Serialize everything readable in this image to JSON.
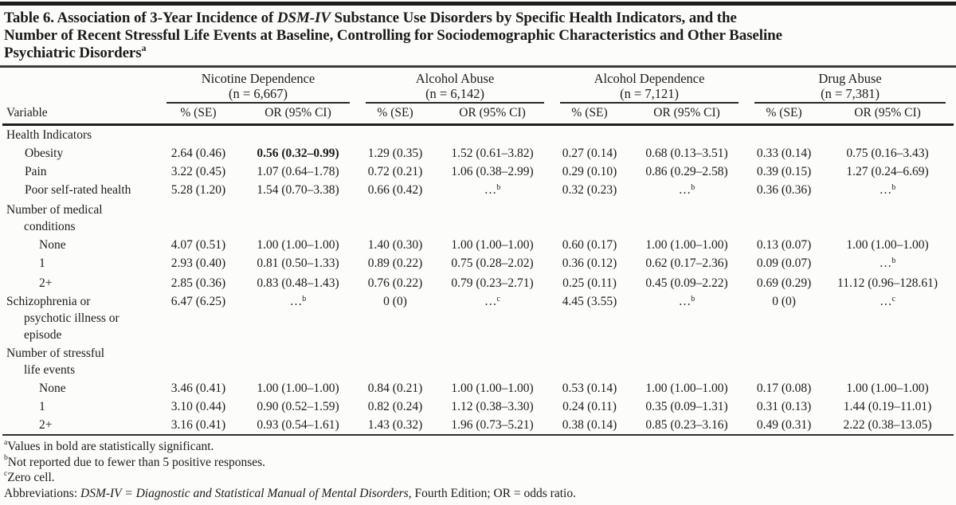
{
  "title": {
    "lines": [
      [
        {
          "t": "Table 6. Association of 3-Year Incidence of "
        },
        {
          "t": "DSM-IV",
          "i": true
        },
        {
          "t": " Substance Use Disorders by Specific Health Indicators, and the"
        }
      ],
      [
        {
          "t": "Number of Recent Stressful Life Events at Baseline, Controlling for Sociodemographic Characteristics and Other Baseline"
        }
      ],
      [
        {
          "t": "Psychiatric Disorders"
        },
        {
          "t": "a",
          "sup": true
        }
      ]
    ]
  },
  "table": {
    "corner_header": "Variable",
    "groups": [
      {
        "name": "Nicotine Dependence",
        "n": "(n = 6,667)"
      },
      {
        "name": "Alcohol Abuse",
        "n": "(n = 6,142)"
      },
      {
        "name": "Alcohol Dependence",
        "n": "(n = 7,121)"
      },
      {
        "name": "Drug Abuse",
        "n": "(n = 7,381)"
      }
    ],
    "subheaders": [
      "% (SE)",
      "OR (95% CI)"
    ],
    "rows": [
      {
        "label": {
          "lines": [
            "Health Indicators"
          ],
          "level": 1
        },
        "cells": null
      },
      {
        "label": {
          "lines": [
            "Obesity"
          ],
          "level": 2
        },
        "cells": [
          {
            "t": "2.64 (0.46)"
          },
          {
            "t": "0.56 (0.32–0.99)",
            "b": true
          },
          {
            "t": "1.29 (0.35)"
          },
          {
            "t": "1.52 (0.61–3.82)"
          },
          {
            "t": "0.27 (0.14)"
          },
          {
            "t": "0.68 (0.13–3.51)"
          },
          {
            "t": "0.33 (0.14)"
          },
          {
            "t": "0.75 (0.16–3.43)"
          }
        ]
      },
      {
        "label": {
          "lines": [
            "Pain"
          ],
          "level": 2
        },
        "cells": [
          {
            "t": "3.22 (0.45)"
          },
          {
            "t": "1.07 (0.64–1.78)"
          },
          {
            "t": "0.72 (0.21)"
          },
          {
            "t": "1.06 (0.38–2.99)"
          },
          {
            "t": "0.29 (0.10)"
          },
          {
            "t": "0.86 (0.29–2.58)"
          },
          {
            "t": "0.39 (0.15)"
          },
          {
            "t": "1.27 (0.24–6.69)"
          }
        ]
      },
      {
        "label": {
          "lines": [
            "Poor self-rated health"
          ],
          "level": 2
        },
        "cells": [
          {
            "t": "5.28 (1.20)"
          },
          {
            "t": "1.54 (0.70–3.38)"
          },
          {
            "t": "0.66 (0.42)"
          },
          {
            "t": "…",
            "sup": "b"
          },
          {
            "t": "0.32 (0.23)"
          },
          {
            "t": "…",
            "sup": "b"
          },
          {
            "t": "0.36 (0.36)"
          },
          {
            "t": "…",
            "sup": "b"
          }
        ]
      },
      {
        "label": {
          "lines": [
            "Number of medical",
            "conditions"
          ],
          "level": 1
        },
        "cells": null
      },
      {
        "label": {
          "lines": [
            "None"
          ],
          "level": 3
        },
        "cells": [
          {
            "t": "4.07 (0.51)"
          },
          {
            "t": "1.00 (1.00–1.00)"
          },
          {
            "t": "1.40 (0.30)"
          },
          {
            "t": "1.00 (1.00–1.00)"
          },
          {
            "t": "0.60 (0.17)"
          },
          {
            "t": "1.00 (1.00–1.00)"
          },
          {
            "t": "0.13 (0.07)"
          },
          {
            "t": "1.00 (1.00–1.00)"
          }
        ]
      },
      {
        "label": {
          "lines": [
            "1"
          ],
          "level": 3
        },
        "cells": [
          {
            "t": "2.93 (0.40)"
          },
          {
            "t": "0.81 (0.50–1.33)"
          },
          {
            "t": "0.89 (0.22)"
          },
          {
            "t": "0.75 (0.28–2.02)"
          },
          {
            "t": "0.36 (0.12)"
          },
          {
            "t": "0.62 (0.17–2.36)"
          },
          {
            "t": "0.09 (0.07)"
          },
          {
            "t": "…",
            "sup": "b"
          }
        ]
      },
      {
        "label": {
          "lines": [
            "2+"
          ],
          "level": 3
        },
        "cells": [
          {
            "t": "2.85 (0.36)"
          },
          {
            "t": "0.83 (0.48–1.43)"
          },
          {
            "t": "0.76 (0.22)"
          },
          {
            "t": "0.79 (0.23–2.71)"
          },
          {
            "t": "0.25 (0.11)"
          },
          {
            "t": "0.45 (0.09–2.22)"
          },
          {
            "t": "0.69 (0.29)"
          },
          {
            "t": "11.12 (0.96–128.61)"
          }
        ]
      },
      {
        "label": {
          "lines": [
            "Schizophrenia or",
            "psychotic illness or",
            "episode"
          ],
          "level": 1
        },
        "cells": [
          {
            "t": "6.47 (6.25)"
          },
          {
            "t": "…",
            "sup": "b"
          },
          {
            "t": "0 (0)"
          },
          {
            "t": "…",
            "sup": "c"
          },
          {
            "t": "4.45 (3.55)"
          },
          {
            "t": "…",
            "sup": "b"
          },
          {
            "t": "0 (0)"
          },
          {
            "t": "…",
            "sup": "c"
          }
        ]
      },
      {
        "label": {
          "lines": [
            "Number of stressful",
            "life events"
          ],
          "level": 1
        },
        "cells": null
      },
      {
        "label": {
          "lines": [
            "None"
          ],
          "level": 3
        },
        "cells": [
          {
            "t": "3.46 (0.41)"
          },
          {
            "t": "1.00 (1.00–1.00)"
          },
          {
            "t": "0.84 (0.21)"
          },
          {
            "t": "1.00 (1.00–1.00)"
          },
          {
            "t": "0.53 (0.14)"
          },
          {
            "t": "1.00 (1.00–1.00)"
          },
          {
            "t": "0.17 (0.08)"
          },
          {
            "t": "1.00 (1.00–1.00)"
          }
        ]
      },
      {
        "label": {
          "lines": [
            "1"
          ],
          "level": 3
        },
        "cells": [
          {
            "t": "3.10 (0.44)"
          },
          {
            "t": "0.90 (0.52–1.59)"
          },
          {
            "t": "0.82 (0.24)"
          },
          {
            "t": "1.12 (0.38–3.30)"
          },
          {
            "t": "0.24 (0.11)"
          },
          {
            "t": "0.35 (0.09–1.31)"
          },
          {
            "t": "0.31 (0.13)"
          },
          {
            "t": "1.44 (0.19–11.01)"
          }
        ]
      },
      {
        "label": {
          "lines": [
            "2+"
          ],
          "level": 3
        },
        "cells": [
          {
            "t": "3.16 (0.41)"
          },
          {
            "t": "0.93 (0.54–1.61)"
          },
          {
            "t": "1.43 (0.32)"
          },
          {
            "t": "1.96 (0.73–5.21)"
          },
          {
            "t": "0.38 (0.14)"
          },
          {
            "t": "0.85 (0.23–3.16)"
          },
          {
            "t": "0.49 (0.31)"
          },
          {
            "t": "2.22 (0.38–13.05)"
          }
        ]
      }
    ]
  },
  "footnotes": [
    [
      {
        "t": "a",
        "sup": true
      },
      {
        "t": "Values in bold are statistically significant."
      }
    ],
    [
      {
        "t": "b",
        "sup": true
      },
      {
        "t": "Not reported due to fewer than 5 positive responses."
      }
    ],
    [
      {
        "t": "c",
        "sup": true
      },
      {
        "t": "Zero cell."
      }
    ],
    [
      {
        "t": "Abbreviations: "
      },
      {
        "t": "DSM-IV = Diagnostic and Statistical Manual of Mental Disorders",
        "i": true
      },
      {
        "t": ", Fourth Edition; OR = odds ratio."
      }
    ]
  ],
  "colors": {
    "background": "#fcfcfa",
    "text": "#1c1c1c",
    "rule_heavy": "#1d1d1d",
    "rule_medium": "#3c3c3c"
  }
}
